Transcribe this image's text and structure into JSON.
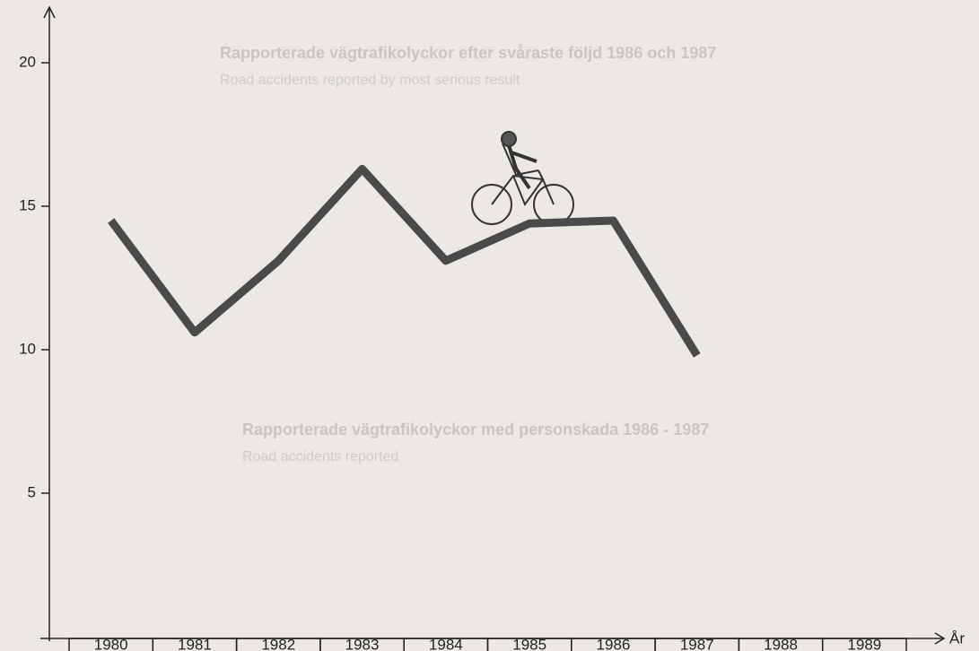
{
  "chart_data": {
    "type": "line",
    "annotations": [
      "Rapporterade vägtrafikolyckor efter svåraste följd 1986 och 1987",
      "Road accidents reported by most serious result",
      "Rapporterade vägtrafikolyckor med personskada 1986 - 1987",
      "Road accidents reported"
    ],
    "x_label": "År",
    "categories": [
      "1980",
      "1981",
      "1982",
      "1983",
      "1984",
      "1985",
      "1986",
      "1987",
      "1988",
      "1989"
    ],
    "series": [
      {
        "name": null,
        "color": "#4a4a4a",
        "values": [
          14.5,
          10.6,
          13.1,
          16.3,
          13.1,
          14.4,
          14.5,
          9.8,
          null,
          null
        ]
      }
    ],
    "ylim": [
      0,
      22
    ],
    "yticks": [
      5,
      10,
      15,
      20
    ]
  }
}
